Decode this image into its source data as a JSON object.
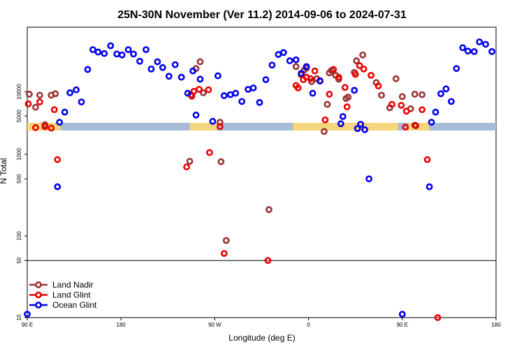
{
  "chart_data": {
    "type": "scatter",
    "title": "25N-30N November (Ver 11.2)   2014-09-06 to 2024-07-31",
    "xlabel": "Longitude (deg E)",
    "ylabel": "N Total",
    "x_ticks": [
      {
        "value": 90,
        "label": "90 E"
      },
      {
        "value": 180,
        "label": "180"
      },
      {
        "value": 270,
        "label": "90 W"
      },
      {
        "value": 360,
        "label": "0"
      },
      {
        "value": 450,
        "label": "90 E"
      },
      {
        "value": 540,
        "label": "180"
      }
    ],
    "xlim": [
      90,
      540
    ],
    "y_ticks_log": [
      {
        "value": 10,
        "label": "10"
      },
      {
        "value": 50,
        "label": "50"
      },
      {
        "value": 100,
        "label": "100"
      },
      {
        "value": 500,
        "label": "500"
      },
      {
        "value": 1000,
        "label": "1000"
      }
    ],
    "y_ticks_linear": [
      {
        "value": 5000,
        "label": "5000"
      },
      {
        "value": 10000,
        "label": "10000"
      }
    ],
    "reference_line": 50,
    "land_mask_color_land": "#f5d67a",
    "land_mask_color_ocean": "#a6bcd9",
    "series": [
      {
        "name": "Land Nadir",
        "color": "#993333",
        "points": [
          [
            92,
            9500
          ],
          [
            98,
            6800
          ],
          [
            102,
            9300
          ],
          [
            107,
            3200
          ],
          [
            113,
            9300
          ],
          [
            117,
            9600
          ],
          [
            246,
            820
          ],
          [
            247,
            9400
          ],
          [
            252,
            14800
          ],
          [
            256,
            16200
          ],
          [
            259,
            9800
          ],
          [
            275,
            3700
          ],
          [
            276,
            810
          ],
          [
            281,
            88
          ],
          [
            322,
            210
          ],
          [
            348,
            15200
          ],
          [
            353,
            13500
          ],
          [
            356,
            14500
          ],
          [
            358,
            14900
          ],
          [
            363,
            12100
          ],
          [
            368,
            12700
          ],
          [
            375,
            1900
          ],
          [
            378,
            7400
          ],
          [
            380,
            13900
          ],
          [
            382,
            14400
          ],
          [
            386,
            13400
          ],
          [
            389,
            12600
          ],
          [
            396,
            8600
          ],
          [
            398,
            8900
          ],
          [
            404,
            14000
          ],
          [
            406,
            16400
          ],
          [
            412,
            17600
          ],
          [
            425,
            11900
          ],
          [
            430,
            9300
          ],
          [
            438,
            6700
          ],
          [
            444,
            12700
          ],
          [
            450,
            9000
          ],
          [
            458,
            6500
          ],
          [
            462,
            9500
          ],
          [
            462,
            3100
          ],
          [
            469,
            9400
          ]
        ]
      },
      {
        "name": "Land Glint",
        "color": "#ee0000",
        "points": [
          [
            91,
            7500
          ],
          [
            98,
            2600
          ],
          [
            102,
            7900
          ],
          [
            107,
            2800
          ],
          [
            113,
            2500
          ],
          [
            116,
            6300
          ],
          [
            119,
            860
          ],
          [
            243,
            700
          ],
          [
            248,
            9100
          ],
          [
            250,
            10100
          ],
          [
            255,
            10500
          ],
          [
            264,
            10400
          ],
          [
            265,
            1050
          ],
          [
            275,
            2800
          ],
          [
            279,
            61
          ],
          [
            321,
            50
          ],
          [
            348,
            11300
          ],
          [
            350,
            10800
          ],
          [
            355,
            12500
          ],
          [
            358,
            13000
          ],
          [
            362,
            12700
          ],
          [
            366,
            14300
          ],
          [
            371,
            12300
          ],
          [
            376,
            4200
          ],
          [
            380,
            9500
          ],
          [
            384,
            14600
          ],
          [
            389,
            13000
          ],
          [
            395,
            10900
          ],
          [
            397,
            6900
          ],
          [
            405,
            13600
          ],
          [
            409,
            15400
          ],
          [
            413,
            14700
          ],
          [
            420,
            13400
          ],
          [
            427,
            11200
          ],
          [
            440,
            7400
          ],
          [
            449,
            7200
          ],
          [
            453,
            2700
          ],
          [
            454,
            6000
          ],
          [
            463,
            3000
          ],
          [
            469,
            6300
          ],
          [
            474,
            860
          ],
          [
            484,
            10
          ]
        ]
      },
      {
        "name": "Ocean Glint",
        "color": "#0000ee",
        "points": [
          [
            90,
            11
          ],
          [
            119,
            400
          ],
          [
            121,
            3700
          ],
          [
            126,
            5800
          ],
          [
            131,
            9800
          ],
          [
            137,
            10400
          ],
          [
            142,
            7900
          ],
          [
            148,
            14600
          ],
          [
            153,
            18700
          ],
          [
            158,
            18200
          ],
          [
            164,
            17900
          ],
          [
            170,
            19500
          ],
          [
            176,
            17800
          ],
          [
            181,
            17600
          ],
          [
            187,
            18700
          ],
          [
            192,
            17800
          ],
          [
            198,
            16300
          ],
          [
            204,
            18700
          ],
          [
            209,
            14700
          ],
          [
            215,
            16200
          ],
          [
            220,
            15000
          ],
          [
            226,
            13200
          ],
          [
            232,
            15600
          ],
          [
            238,
            13000
          ],
          [
            244,
            9700
          ],
          [
            249,
            14300
          ],
          [
            252,
            5200
          ],
          [
            256,
            12600
          ],
          [
            268,
            3900
          ],
          [
            273,
            13300
          ],
          [
            279,
            9200
          ],
          [
            285,
            9400
          ],
          [
            290,
            9700
          ],
          [
            296,
            8000
          ],
          [
            302,
            10500
          ],
          [
            307,
            10800
          ],
          [
            313,
            7800
          ],
          [
            319,
            12500
          ],
          [
            325,
            15500
          ],
          [
            331,
            17700
          ],
          [
            336,
            18100
          ],
          [
            342,
            16400
          ],
          [
            348,
            16600
          ],
          [
            353,
            13800
          ],
          [
            358,
            15200
          ],
          [
            364,
            9700
          ],
          [
            371,
            12200
          ],
          [
            391,
            3400
          ],
          [
            393,
            4900
          ],
          [
            404,
            10300
          ],
          [
            407,
            2400
          ],
          [
            410,
            3300
          ],
          [
            414,
            2000
          ],
          [
            418,
            500
          ],
          [
            450,
            11
          ],
          [
            476,
            400
          ],
          [
            478,
            3700
          ],
          [
            482,
            5800
          ],
          [
            487,
            9600
          ],
          [
            492,
            10600
          ],
          [
            497,
            8000
          ],
          [
            502,
            14800
          ],
          [
            508,
            19100
          ],
          [
            513,
            18400
          ],
          [
            519,
            18300
          ],
          [
            524,
            20300
          ],
          [
            530,
            19800
          ],
          [
            536,
            18300
          ]
        ]
      }
    ],
    "legend": {
      "placement": "bottom-left",
      "entries": [
        "Land Nadir",
        "Land Glint",
        "Ocean Glint"
      ]
    }
  }
}
